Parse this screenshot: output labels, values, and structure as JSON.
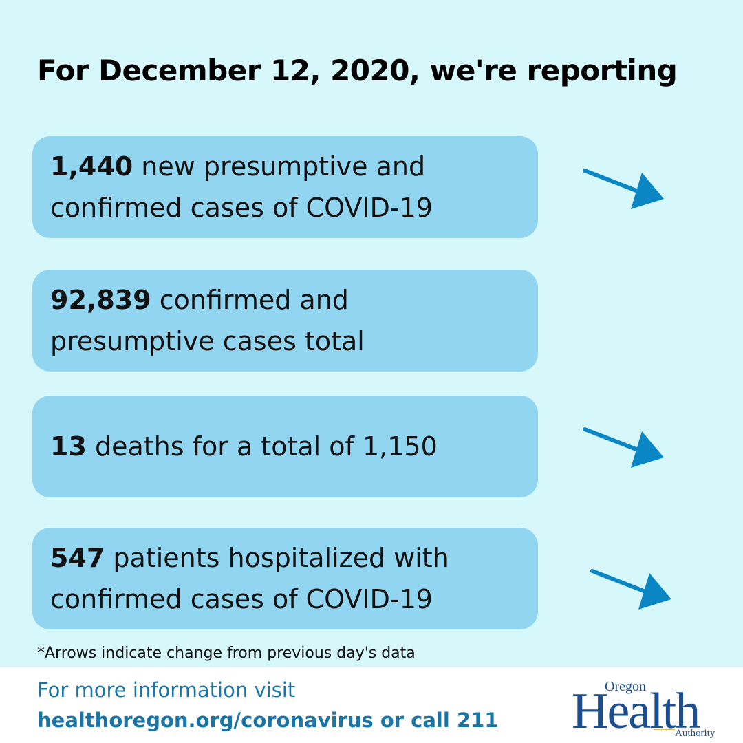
{
  "header": {
    "title": "For December 12, 2020, we're reporting"
  },
  "cards": [
    {
      "number": "1,440",
      "line1_rest": " new presumptive and",
      "line2": "confirmed cases of COVID-19",
      "arrow": "down-arrow-icon"
    },
    {
      "number": "92,839",
      "line1_rest": " confirmed and",
      "line2": "presumptive cases total"
    },
    {
      "number": "13",
      "line1_rest": " deaths for a total of 1,150",
      "arrow": "down-arrow-icon"
    },
    {
      "number": "547",
      "line1_rest": " patients hospitalized with",
      "line2": "confirmed cases of COVID-19",
      "arrow": "down-arrow-icon"
    }
  ],
  "footnote": "*Arrows indicate change from previous day's data",
  "footer": {
    "info_text": "For more information visit",
    "link_text": "healthoregon.org/coronavirus or call 211"
  },
  "logo": {
    "top": "Oregon",
    "main": "Health",
    "bottom": "Authority"
  },
  "colors": {
    "background": "#d6f8fb",
    "card": "#91d5f1",
    "arrow": "#0b86c4",
    "footer_text": "#1a75a6",
    "logo": "#1c4f8f"
  }
}
